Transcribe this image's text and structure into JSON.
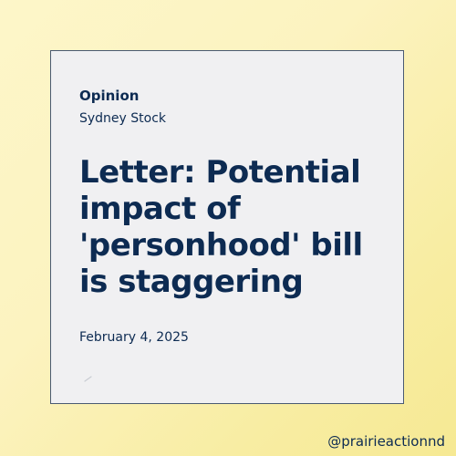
{
  "card": {
    "section": "Opinion",
    "author": "Sydney Stock",
    "headline": "Letter: Potential impact of 'personhood' bill is staggering",
    "date": "February 4, 2025",
    "icon": "pen-icon"
  },
  "footer": {
    "handle": "@prairieactionnd"
  },
  "colors": {
    "text": "#0d2b52",
    "card_background": "#f0f0f2",
    "card_border": "#4a5a72",
    "page_background": "#fcf3c0"
  }
}
